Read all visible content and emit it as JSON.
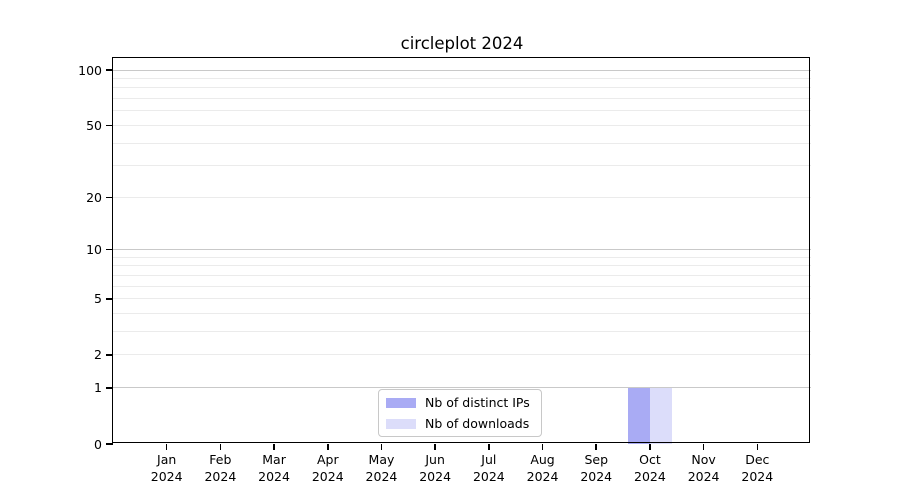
{
  "figure": {
    "title": "circleplot 2024"
  },
  "chart_data": {
    "type": "bar",
    "title": "circleplot 2024",
    "categories": [
      "Jan 2024",
      "Feb 2024",
      "Mar 2024",
      "Apr 2024",
      "May 2024",
      "Jun 2024",
      "Jul 2024",
      "Aug 2024",
      "Sep 2024",
      "Oct 2024",
      "Nov 2024",
      "Dec 2024"
    ],
    "series": [
      {
        "name": "Nb of distinct IPs",
        "color": "#a9abf4",
        "values": [
          0,
          0,
          0,
          0,
          0,
          0,
          0,
          0,
          0,
          1,
          0,
          0
        ]
      },
      {
        "name": "Nb of downloads",
        "color": "#dcddfa",
        "values": [
          0,
          0,
          0,
          0,
          0,
          0,
          0,
          0,
          0,
          1,
          0,
          0
        ]
      }
    ],
    "yscale": "log1p",
    "ylim": [
      0,
      117
    ],
    "yticks": {
      "values": [
        0,
        1,
        2,
        5,
        10,
        20,
        50,
        100
      ],
      "labels": [
        "0",
        "1",
        "2",
        "5",
        "10",
        "20",
        "50",
        "100"
      ]
    },
    "grid": {
      "major_values": [
        1,
        10,
        100
      ],
      "minor_values": [
        2,
        3,
        4,
        5,
        6,
        7,
        8,
        9,
        20,
        30,
        40,
        50,
        60,
        70,
        80,
        90
      ]
    },
    "legend": {
      "position": "inside-bottom-center"
    }
  }
}
